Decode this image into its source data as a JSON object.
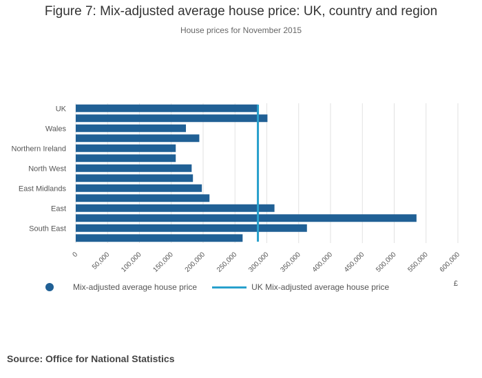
{
  "header": {
    "title": "Figure 7: Mix-adjusted average house price: UK, country and region",
    "subtitle": "House prices for November 2015"
  },
  "chart_data": {
    "type": "bar",
    "orientation": "horizontal",
    "categories": [
      "UK",
      "",
      "Wales",
      "",
      "Northern Ireland",
      "",
      "North West",
      "",
      "East Midlands",
      "",
      "East",
      "",
      "South East",
      ""
    ],
    "series": [
      {
        "name": "Mix-adjusted average house price",
        "values": [
          286000,
          301000,
          173000,
          194000,
          157000,
          157000,
          182000,
          184000,
          198000,
          210000,
          312000,
          535000,
          363000,
          262000
        ]
      }
    ],
    "reference_line": {
      "name": "UK Mix-adjusted average house price",
      "value": 286000
    },
    "xlim": [
      0,
      600000
    ],
    "x_ticks": [
      "0",
      "50,000",
      "100,000",
      "150,000",
      "200,000",
      "250,000",
      "300,000",
      "350,000",
      "400,000",
      "450,000",
      "500,000",
      "550,000",
      "600,000"
    ],
    "x_unit": "£",
    "grid": true,
    "legend_position": "bottom",
    "colors": {
      "bar": "#206095",
      "reference": "#27a0cc"
    }
  },
  "legend": {
    "series_label": "Mix-adjusted average house price",
    "line_label": "UK Mix-adjusted average house price"
  },
  "source": "Source: Office for National Statistics"
}
